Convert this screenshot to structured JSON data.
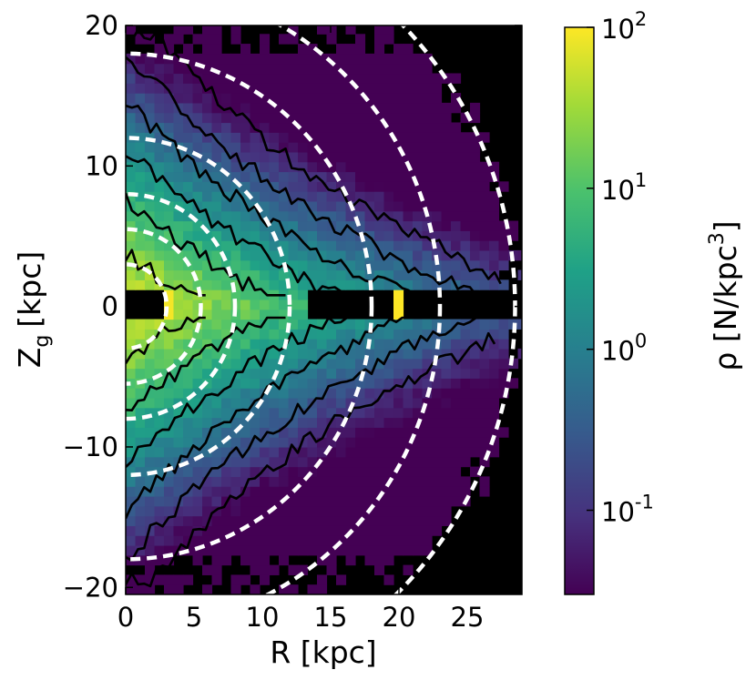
{
  "chart_data": {
    "type": "heatmap",
    "xlabel": "R [kpc]",
    "ylabel": "Z",
    "ylabel_sub": "g",
    "ylabel_unit": "[kpc]",
    "xlim": [
      0,
      29
    ],
    "ylim": [
      -20.5,
      20
    ],
    "x_ticks": [
      0,
      5,
      10,
      15,
      20,
      25
    ],
    "y_ticks": [
      20,
      10,
      0,
      -10,
      -20
    ],
    "y_tick_labels": [
      "20",
      "10",
      "0",
      "−10",
      "−20"
    ],
    "colorbar": {
      "label": "ρ [N/kpc",
      "label_sup": "3",
      "label_close": "]",
      "scale": "log",
      "range": [
        0.03,
        100
      ],
      "ticks": [
        {
          "value": 100,
          "base": "10",
          "exp": "2"
        },
        {
          "value": 10,
          "base": "10",
          "exp": "1"
        },
        {
          "value": 1,
          "base": "10",
          "exp": "0"
        },
        {
          "value": 0.1,
          "base": "10",
          "exp": "-1"
        }
      ],
      "colormap": "viridis"
    },
    "density_model": {
      "description_values": "axisymmetric density falling with radius and height; peak near R 3-8 kpc, |Z| ~ 1 kpc",
      "peak_log10_density": 1.9,
      "cell_size_kpc": 0.7
    },
    "dashed_rings_kpc": [
      3,
      5.5,
      8,
      12,
      18,
      23,
      28.5
    ],
    "dashed_ring_color": "#ffffff",
    "background_color": "#000000",
    "contour_color": "#000000"
  }
}
